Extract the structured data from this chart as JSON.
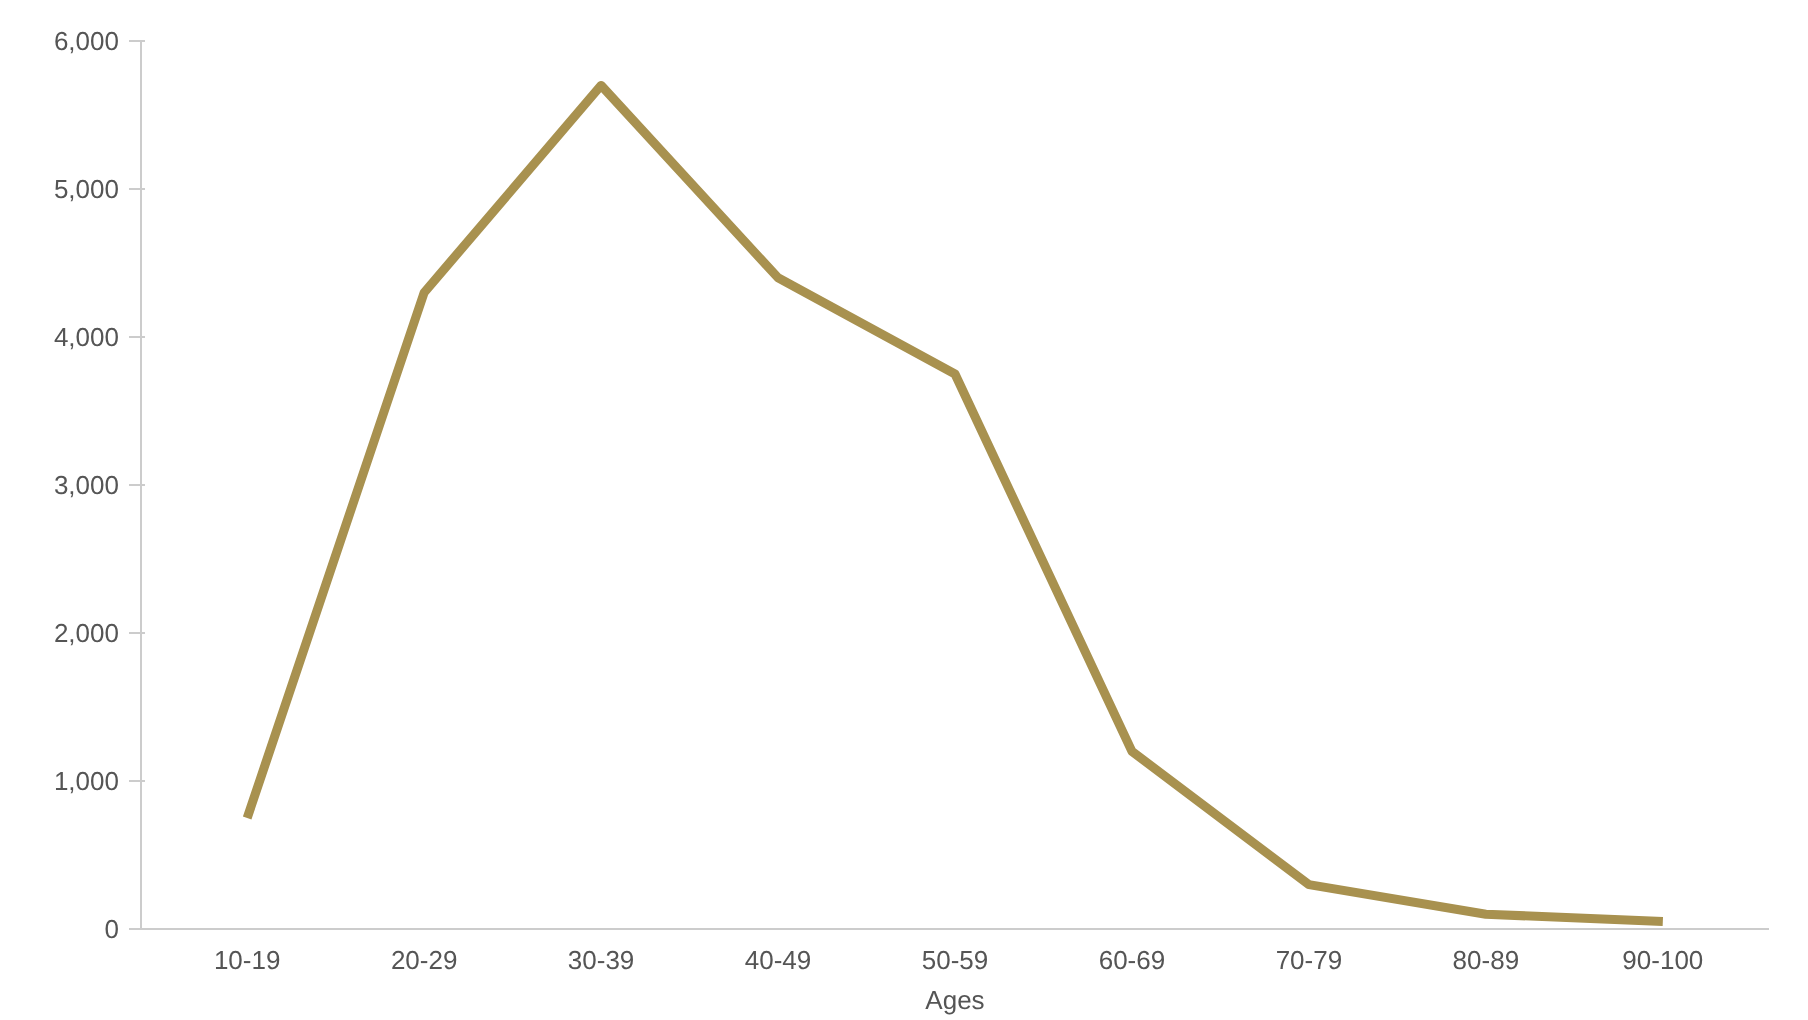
{
  "chart_data": {
    "type": "line",
    "xlabel": "Ages",
    "categories": [
      "10-19",
      "20-29",
      "30-39",
      "40-49",
      "50-59",
      "60-69",
      "70-79",
      "80-89",
      "90-100"
    ],
    "series": [
      {
        "color": "#a8914f",
        "values": [
          750,
          4300,
          5700,
          4400,
          3750,
          1200,
          300,
          100,
          50
        ]
      }
    ],
    "ylim": [
      0,
      6000
    ],
    "yticks": [
      {
        "value": 0,
        "label": "0"
      },
      {
        "value": 1000,
        "label": "1,000"
      },
      {
        "value": 2000,
        "label": "2,000"
      },
      {
        "value": 3000,
        "label": "3,000"
      },
      {
        "value": 4000,
        "label": "4,000"
      },
      {
        "value": 5000,
        "label": "5,000"
      },
      {
        "value": 6000,
        "label": "6,000"
      }
    ],
    "grid": false,
    "marker": "none",
    "line_style": "solid"
  }
}
